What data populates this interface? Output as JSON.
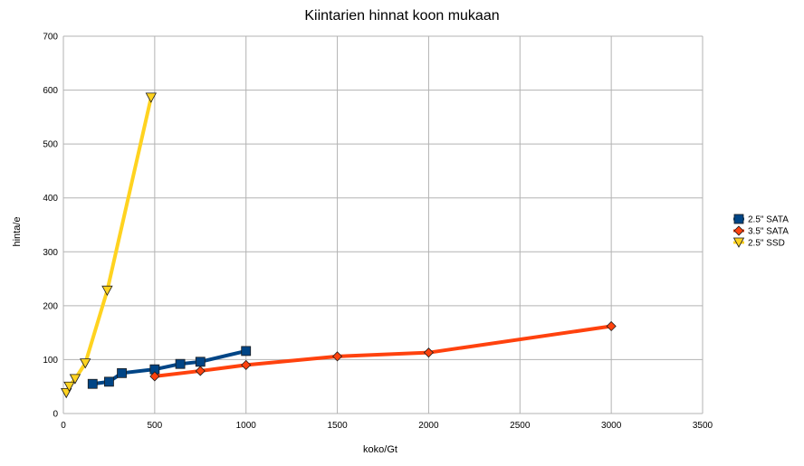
{
  "chart_data": {
    "type": "line",
    "title": "Kiintarien hinnat koon mukaan",
    "xlabel": "koko/Gt",
    "ylabel": "hinta/e",
    "xlim": [
      0,
      3500
    ],
    "ylim": [
      0,
      700
    ],
    "xticks": [
      0,
      500,
      1000,
      1500,
      2000,
      2500,
      3000,
      3500
    ],
    "yticks": [
      0,
      100,
      200,
      300,
      400,
      500,
      600,
      700
    ],
    "grid": true,
    "legend_position": "right",
    "series": [
      {
        "name": "2.5\" SATA",
        "color": "#004586",
        "marker": "square",
        "points": [
          [
            160,
            55
          ],
          [
            250,
            59
          ],
          [
            320,
            75
          ],
          [
            500,
            82
          ],
          [
            640,
            92
          ],
          [
            750,
            96
          ],
          [
            1000,
            116
          ]
        ]
      },
      {
        "name": "3.5\" SATA",
        "color": "#ff420e",
        "marker": "diamond",
        "points": [
          [
            500,
            69
          ],
          [
            750,
            79
          ],
          [
            1000,
            90
          ],
          [
            1500,
            106
          ],
          [
            2000,
            113
          ],
          [
            3000,
            162
          ]
        ]
      },
      {
        "name": "2.5\" SSD",
        "color": "#ffd320",
        "marker": "triangle-down",
        "points": [
          [
            16,
            38
          ],
          [
            32,
            50
          ],
          [
            64,
            64
          ],
          [
            120,
            93
          ],
          [
            240,
            228
          ],
          [
            480,
            586
          ]
        ]
      }
    ]
  }
}
